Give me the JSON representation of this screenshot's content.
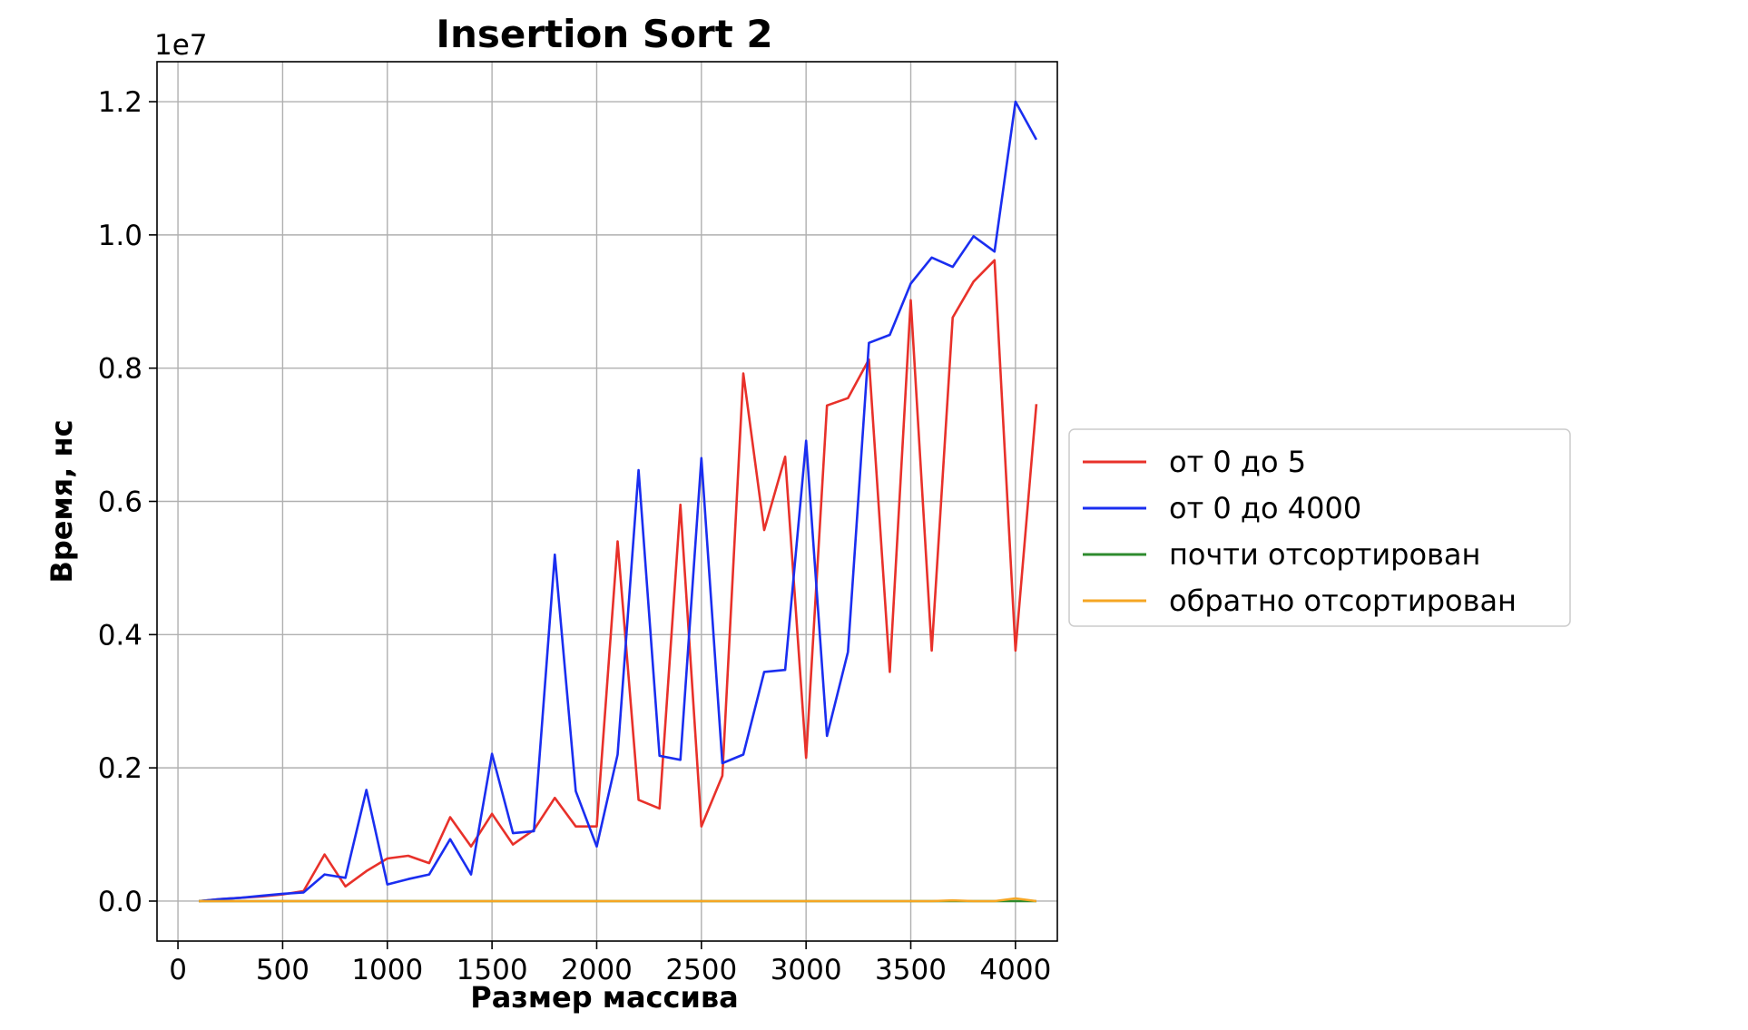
{
  "chart_data": {
    "type": "line",
    "title": "Insertion Sort 2",
    "xlabel": "Размер массива",
    "ylabel": "Время, нс",
    "y_offset_label": "1e7",
    "y_scale": 10000000,
    "xlim": [
      -100,
      4200
    ],
    "ylim": [
      -0.06,
      1.26
    ],
    "x_ticks": [
      0,
      500,
      1000,
      1500,
      2000,
      2500,
      3000,
      3500,
      4000
    ],
    "x_tick_labels": [
      "0",
      "500",
      "1000",
      "1500",
      "2000",
      "2500",
      "3000",
      "3500",
      "4000"
    ],
    "y_ticks": [
      0.0,
      0.2,
      0.4,
      0.6,
      0.8,
      1.0,
      1.2
    ],
    "y_tick_labels": [
      "0.0",
      "0.2",
      "0.4",
      "0.6",
      "0.8",
      "1.0",
      "1.2"
    ],
    "grid": true,
    "legend_position": "outside-right",
    "x": [
      100,
      200,
      300,
      400,
      500,
      600,
      700,
      800,
      900,
      1000,
      1100,
      1200,
      1300,
      1400,
      1500,
      1600,
      1700,
      1800,
      1900,
      2000,
      2100,
      2200,
      2300,
      2400,
      2500,
      2600,
      2700,
      2800,
      2900,
      3000,
      3100,
      3200,
      3300,
      3400,
      3500,
      3600,
      3700,
      3800,
      3900,
      4000,
      4100
    ],
    "series": [
      {
        "name": "от 0 до 5",
        "color": "#e8312a",
        "values": [
          0.0,
          0.003,
          0.005,
          0.007,
          0.01,
          0.015,
          0.07,
          0.022,
          0.045,
          0.064,
          0.068,
          0.057,
          0.126,
          0.082,
          0.131,
          0.085,
          0.107,
          0.155,
          0.112,
          0.112,
          0.54,
          0.152,
          0.139,
          0.595,
          0.112,
          0.188,
          0.792,
          0.557,
          0.667,
          0.215,
          0.744,
          0.755,
          0.813,
          0.344,
          0.902,
          0.376,
          0.876,
          0.93,
          0.962,
          0.376,
          0.746
        ]
      },
      {
        "name": "от 0 до 4000",
        "color": "#1a2ef0",
        "values": [
          0.0,
          0.003,
          0.005,
          0.008,
          0.011,
          0.013,
          0.04,
          0.035,
          0.167,
          0.025,
          0.033,
          0.04,
          0.093,
          0.04,
          0.221,
          0.102,
          0.105,
          0.52,
          0.165,
          0.082,
          0.22,
          0.647,
          0.218,
          0.212,
          0.665,
          0.207,
          0.22,
          0.344,
          0.347,
          0.691,
          0.248,
          0.374,
          0.838,
          0.85,
          0.927,
          0.966,
          0.952,
          0.998,
          0.975,
          1.2,
          1.143
        ]
      },
      {
        "name": "почти отсортирован",
        "color": "#2e8b2e",
        "values": [
          0.0,
          0.0,
          0.0,
          0.0,
          0.0,
          0.0,
          0.0,
          0.0,
          0.0,
          0.0,
          0.0,
          0.0,
          0.0,
          0.0,
          0.0,
          0.0,
          0.0,
          0.0,
          0.0,
          0.0,
          0.0,
          0.0,
          0.0,
          0.0,
          0.0,
          0.0,
          0.0,
          0.0,
          0.0,
          0.0,
          0.0,
          0.0,
          0.0,
          0.0,
          0.0,
          0.0,
          0.0,
          0.0,
          0.0,
          0.0,
          0.0
        ]
      },
      {
        "name": "обратно отсортирован",
        "color": "#f5a623",
        "values": [
          0.0,
          0.0,
          0.0,
          0.0,
          0.0,
          0.0,
          0.0,
          0.0,
          0.0,
          0.0,
          0.0,
          0.0,
          0.0,
          0.0,
          0.0,
          0.0,
          0.0,
          0.0,
          0.0,
          0.0,
          0.0,
          0.0,
          0.0,
          0.0,
          0.0,
          0.0,
          0.0,
          0.0,
          0.0,
          0.0,
          0.0,
          0.0,
          0.0,
          0.0,
          0.0,
          0.0,
          0.001,
          0.0,
          0.0,
          0.004,
          0.0
        ]
      }
    ]
  }
}
